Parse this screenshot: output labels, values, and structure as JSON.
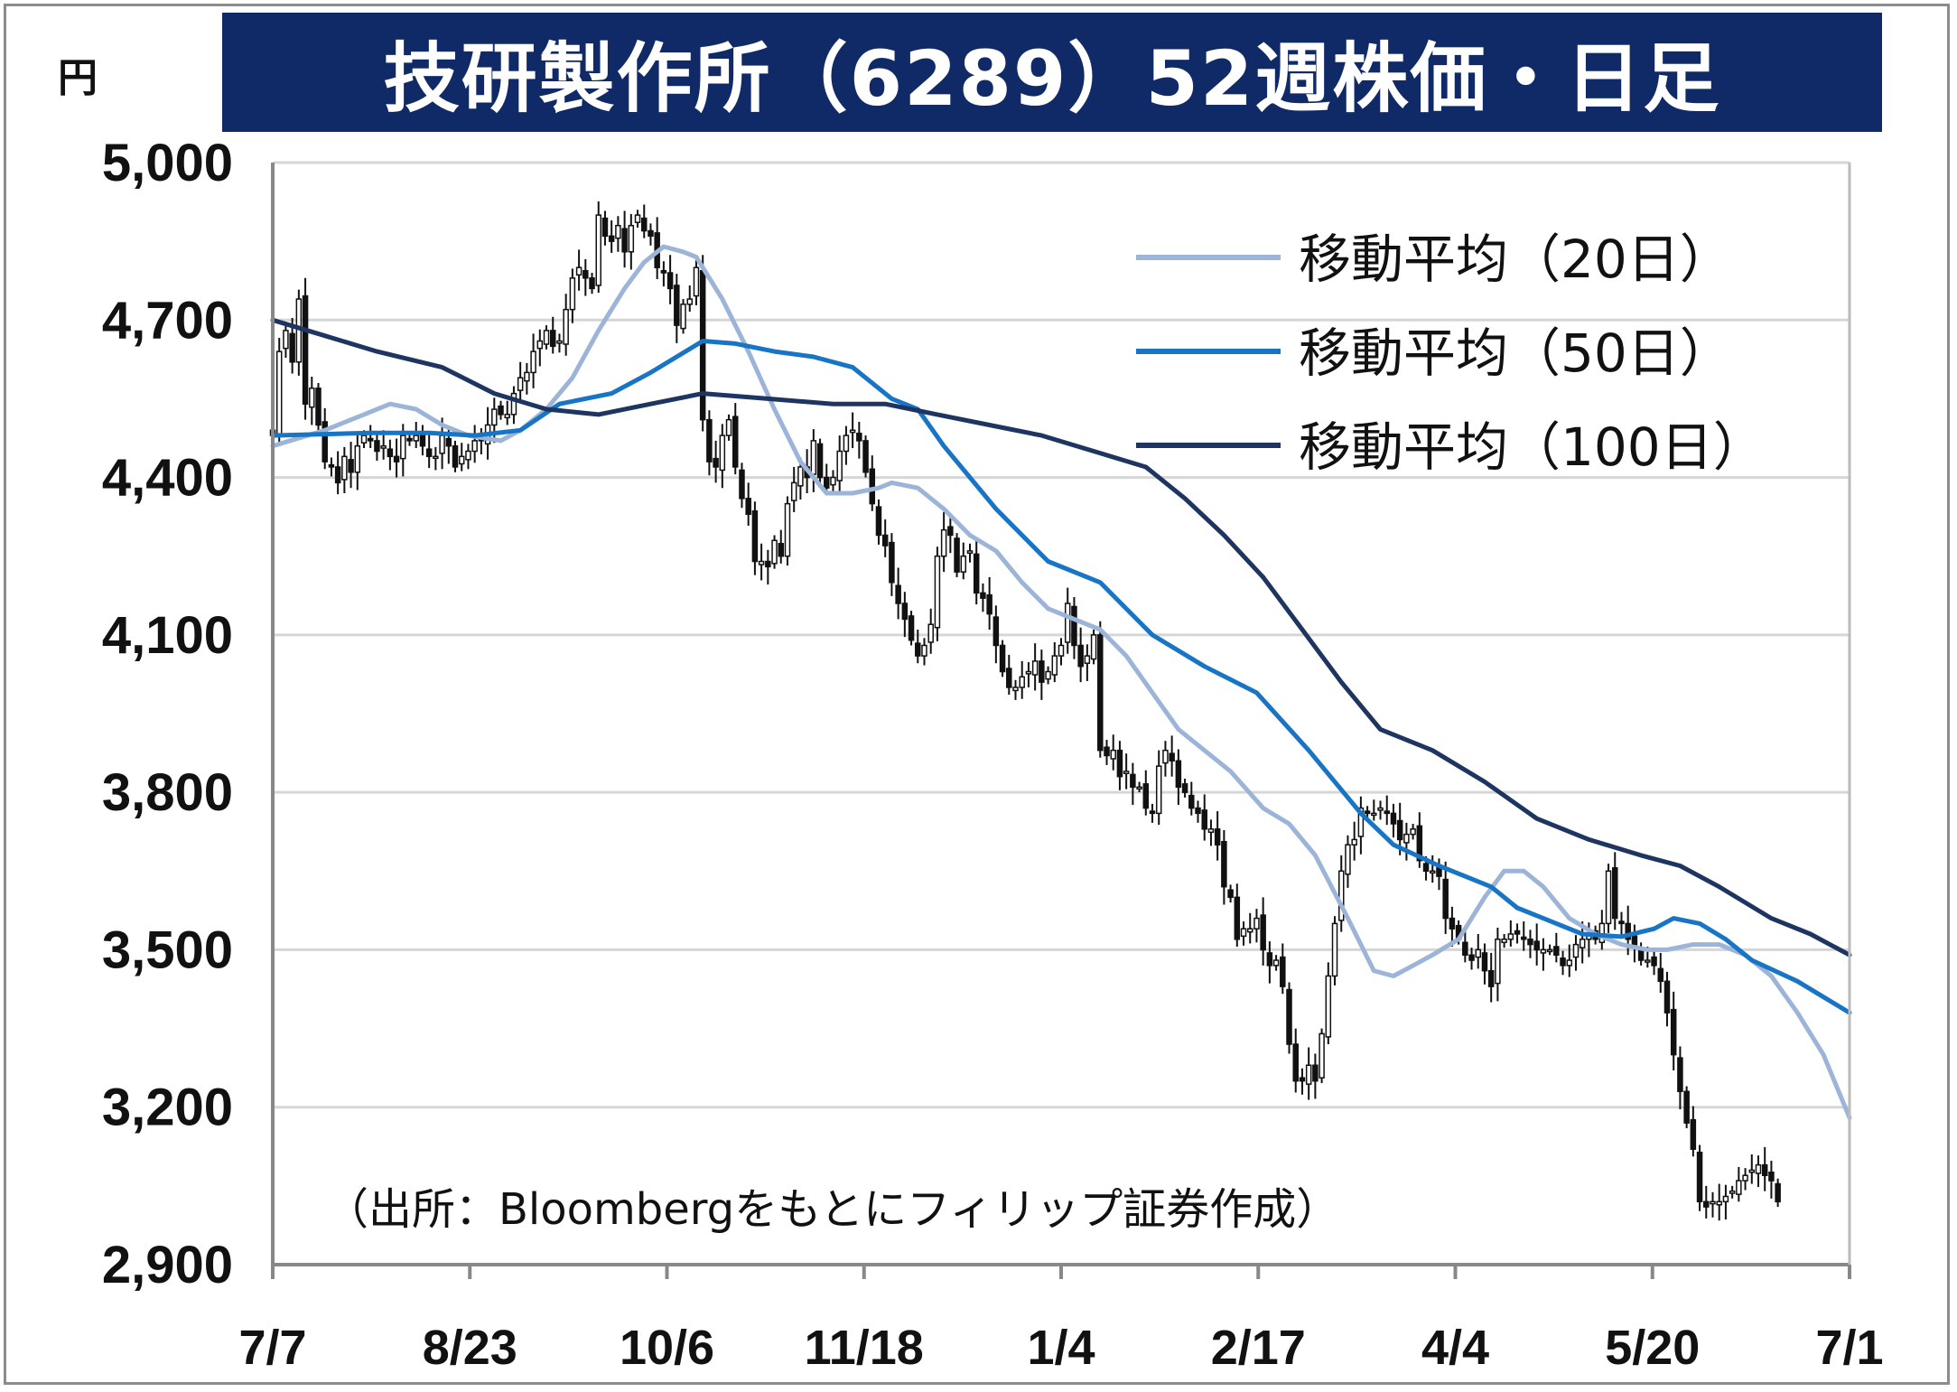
{
  "title": "技研製作所（6289）52週株価・日足",
  "unit": "円",
  "source": "（出所：Bloombergをもとにフィリップ証券作成）",
  "colors": {
    "title_bg": "#0f2a67",
    "title_fg": "#ffffff",
    "ma20": "#9bb4d8",
    "ma50": "#1874c4",
    "ma100": "#1d3560",
    "candle": "#111111",
    "grid": "#d6d6d6"
  },
  "chart_data": {
    "type": "candlestick",
    "title": "技研製作所（6289）52週株価・日足",
    "ylabel": "円",
    "ylim": [
      2900,
      5000
    ],
    "yticks": [
      2900,
      3200,
      3500,
      3800,
      4100,
      4400,
      4700,
      5000
    ],
    "ytick_labels": [
      "2,900",
      "3,200",
      "3,500",
      "3,800",
      "4,100",
      "4,400",
      "4,700",
      "5,000"
    ],
    "xtick_labels": [
      "7/7",
      "8/23",
      "10/6",
      "11/18",
      "1/4",
      "2/17",
      "4/4",
      "5/20",
      "7/1"
    ],
    "n_days": 243,
    "grid": true,
    "legend_position": "top-right",
    "closes": [
      4480,
      4640,
      4680,
      4620,
      4740,
      4540,
      4570,
      4500,
      4430,
      4420,
      4390,
      4440,
      4410,
      4460,
      4480,
      4470,
      4450,
      4460,
      4440,
      4430,
      4480,
      4470,
      4480,
      4460,
      4440,
      4440,
      4480,
      4460,
      4420,
      4440,
      4450,
      4470,
      4470,
      4500,
      4530,
      4520,
      4520,
      4560,
      4590,
      4600,
      4640,
      4660,
      4680,
      4650,
      4660,
      4720,
      4780,
      4800,
      4780,
      4760,
      4900,
      4860,
      4850,
      4880,
      4830,
      4880,
      4900,
      4870,
      4860,
      4800,
      4790,
      4760,
      4690,
      4730,
      4740,
      4800,
      4510,
      4430,
      4420,
      4480,
      4510,
      4420,
      4360,
      4330,
      4240,
      4240,
      4230,
      4280,
      4250,
      4350,
      4390,
      4420,
      4400,
      4470,
      4400,
      4380,
      4400,
      4450,
      4480,
      4490,
      4470,
      4410,
      4350,
      4290,
      4270,
      4200,
      4160,
      4130,
      4090,
      4060,
      4080,
      4120,
      4250,
      4300,
      4290,
      4220,
      4250,
      4260,
      4180,
      4170,
      4140,
      4080,
      4030,
      4000,
      4000,
      4020,
      4030,
      4050,
      4010,
      4030,
      4060,
      4080,
      4160,
      4080,
      4040,
      4060,
      4100,
      3880,
      3870,
      3880,
      3830,
      3840,
      3810,
      3810,
      3770,
      3760,
      3850,
      3880,
      3860,
      3810,
      3800,
      3770,
      3760,
      3730,
      3730,
      3700,
      3620,
      3600,
      3520,
      3540,
      3540,
      3560,
      3500,
      3470,
      3480,
      3430,
      3320,
      3250,
      3250,
      3280,
      3250,
      3340,
      3450,
      3550,
      3650,
      3700,
      3710,
      3770,
      3760,
      3760,
      3770,
      3760,
      3740,
      3710,
      3720,
      3730,
      3670,
      3650,
      3650,
      3640,
      3560,
      3540,
      3520,
      3490,
      3480,
      3500,
      3460,
      3430,
      3520,
      3520,
      3530,
      3530,
      3520,
      3510,
      3500,
      3500,
      3500,
      3490,
      3470,
      3480,
      3510,
      3520,
      3530,
      3520,
      3550,
      3650,
      3560,
      3550,
      3520,
      3510,
      3480,
      3480,
      3470,
      3440,
      3380,
      3300,
      3230,
      3170,
      3120,
      3020,
      3010,
      3020,
      3020,
      3030,
      3040,
      3060,
      3070,
      3080,
      3090,
      3070,
      3060,
      3020
    ],
    "series": [
      {
        "name": "移動平均（20日）",
        "points": [
          [
            0,
            4460
          ],
          [
            8,
            4490
          ],
          [
            14,
            4520
          ],
          [
            18,
            4540
          ],
          [
            22,
            4530
          ],
          [
            26,
            4500
          ],
          [
            30,
            4480
          ],
          [
            35,
            4470
          ],
          [
            38,
            4490
          ],
          [
            42,
            4530
          ],
          [
            46,
            4590
          ],
          [
            50,
            4680
          ],
          [
            54,
            4760
          ],
          [
            57,
            4810
          ],
          [
            60,
            4840
          ],
          [
            63,
            4830
          ],
          [
            65,
            4820
          ],
          [
            69,
            4740
          ],
          [
            73,
            4640
          ],
          [
            77,
            4530
          ],
          [
            81,
            4430
          ],
          [
            85,
            4370
          ],
          [
            89,
            4370
          ],
          [
            93,
            4380
          ],
          [
            95,
            4390
          ],
          [
            99,
            4380
          ],
          [
            103,
            4340
          ],
          [
            107,
            4290
          ],
          [
            111,
            4260
          ],
          [
            115,
            4200
          ],
          [
            119,
            4150
          ],
          [
            123,
            4130
          ],
          [
            127,
            4110
          ],
          [
            131,
            4060
          ],
          [
            135,
            3990
          ],
          [
            139,
            3920
          ],
          [
            143,
            3880
          ],
          [
            147,
            3840
          ],
          [
            152,
            3770
          ],
          [
            156,
            3740
          ],
          [
            160,
            3680
          ],
          [
            165,
            3560
          ],
          [
            169,
            3460
          ],
          [
            172,
            3450
          ],
          [
            175,
            3470
          ],
          [
            178,
            3490
          ],
          [
            182,
            3520
          ],
          [
            186,
            3600
          ],
          [
            189,
            3650
          ],
          [
            192,
            3650
          ],
          [
            195,
            3620
          ],
          [
            199,
            3560
          ],
          [
            203,
            3530
          ],
          [
            207,
            3510
          ],
          [
            211,
            3500
          ],
          [
            214,
            3500
          ],
          [
            218,
            3510
          ],
          [
            222,
            3510
          ],
          [
            226,
            3490
          ],
          [
            230,
            3450
          ],
          [
            234,
            3380
          ],
          [
            238,
            3300
          ],
          [
            242,
            3180
          ]
        ]
      },
      {
        "name": "移動平均（50日）",
        "points": [
          [
            0,
            4480
          ],
          [
            15,
            4485
          ],
          [
            24,
            4485
          ],
          [
            31,
            4480
          ],
          [
            38,
            4490
          ],
          [
            44,
            4540
          ],
          [
            52,
            4560
          ],
          [
            58,
            4600
          ],
          [
            62,
            4630
          ],
          [
            66,
            4660
          ],
          [
            71,
            4655
          ],
          [
            77,
            4640
          ],
          [
            83,
            4630
          ],
          [
            89,
            4610
          ],
          [
            95,
            4550
          ],
          [
            99,
            4530
          ],
          [
            103,
            4460
          ],
          [
            111,
            4340
          ],
          [
            119,
            4240
          ],
          [
            127,
            4200
          ],
          [
            135,
            4100
          ],
          [
            143,
            4040
          ],
          [
            151,
            3990
          ],
          [
            159,
            3880
          ],
          [
            167,
            3760
          ],
          [
            172,
            3700
          ],
          [
            179,
            3660
          ],
          [
            187,
            3620
          ],
          [
            191,
            3580
          ],
          [
            195,
            3560
          ],
          [
            201,
            3530
          ],
          [
            207,
            3525
          ],
          [
            212,
            3540
          ],
          [
            215,
            3560
          ],
          [
            219,
            3550
          ],
          [
            223,
            3520
          ],
          [
            227,
            3480
          ],
          [
            234,
            3440
          ],
          [
            242,
            3380
          ]
        ]
      },
      {
        "name": "移動平均（100日）",
        "points": [
          [
            0,
            4700
          ],
          [
            8,
            4670
          ],
          [
            16,
            4640
          ],
          [
            26,
            4610
          ],
          [
            34,
            4560
          ],
          [
            42,
            4530
          ],
          [
            50,
            4520
          ],
          [
            58,
            4540
          ],
          [
            66,
            4560
          ],
          [
            76,
            4550
          ],
          [
            86,
            4540
          ],
          [
            94,
            4540
          ],
          [
            102,
            4520
          ],
          [
            110,
            4500
          ],
          [
            118,
            4480
          ],
          [
            126,
            4450
          ],
          [
            134,
            4420
          ],
          [
            140,
            4360
          ],
          [
            146,
            4290
          ],
          [
            152,
            4210
          ],
          [
            158,
            4110
          ],
          [
            164,
            4010
          ],
          [
            170,
            3920
          ],
          [
            178,
            3880
          ],
          [
            186,
            3820
          ],
          [
            194,
            3750
          ],
          [
            202,
            3710
          ],
          [
            210,
            3680
          ],
          [
            216,
            3660
          ],
          [
            222,
            3620
          ],
          [
            230,
            3560
          ],
          [
            236,
            3530
          ],
          [
            242,
            3490
          ]
        ]
      }
    ]
  },
  "legend": [
    {
      "label": "移動平均（20日）",
      "color": "#9bb4d8"
    },
    {
      "label": "移動平均（50日）",
      "color": "#1874c4"
    },
    {
      "label": "移動平均（100日）",
      "color": "#1d3560"
    }
  ]
}
